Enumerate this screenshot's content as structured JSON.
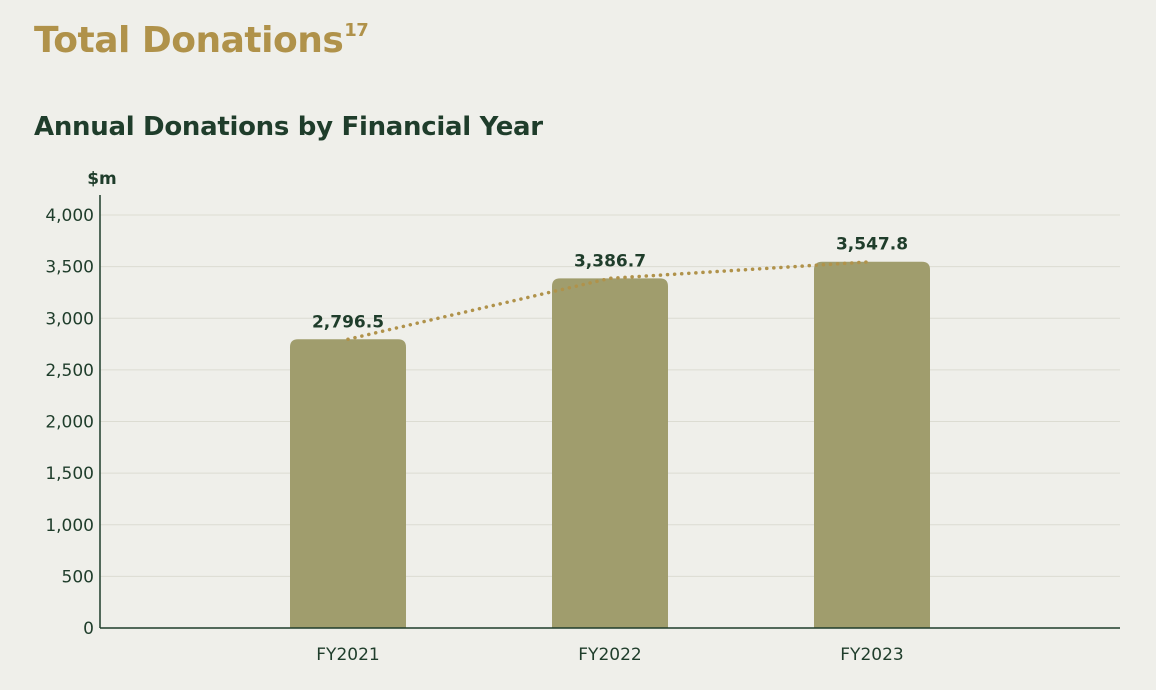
{
  "header": {
    "title": "Total Donations",
    "title_superscript": "17",
    "subtitle": "Annual Donations by Financial Year"
  },
  "colors": {
    "background": "#efefea",
    "title": "#b0924a",
    "text": "#1f3d2b",
    "bar": "#a09d6d",
    "trendline": "#b0924a",
    "grid": "#dcdcd2"
  },
  "chart_data": {
    "type": "bar",
    "ylabel": "$m",
    "xlabel": "",
    "ylim": [
      0,
      4000
    ],
    "yticks": [
      0,
      500,
      1000,
      1500,
      2000,
      2500,
      3000,
      3500,
      4000
    ],
    "ytick_labels": [
      "0",
      "500",
      "1,000",
      "1,500",
      "2,000",
      "2,500",
      "3,000",
      "3,500",
      "4,000"
    ],
    "categories": [
      "FY2021",
      "FY2022",
      "FY2023"
    ],
    "values": [
      2796.5,
      3386.7,
      3547.8
    ],
    "data_labels": [
      "2,796.5",
      "3,386.7",
      "3,547.8"
    ],
    "trendline": "dotted",
    "grid": true,
    "legend": "none"
  }
}
